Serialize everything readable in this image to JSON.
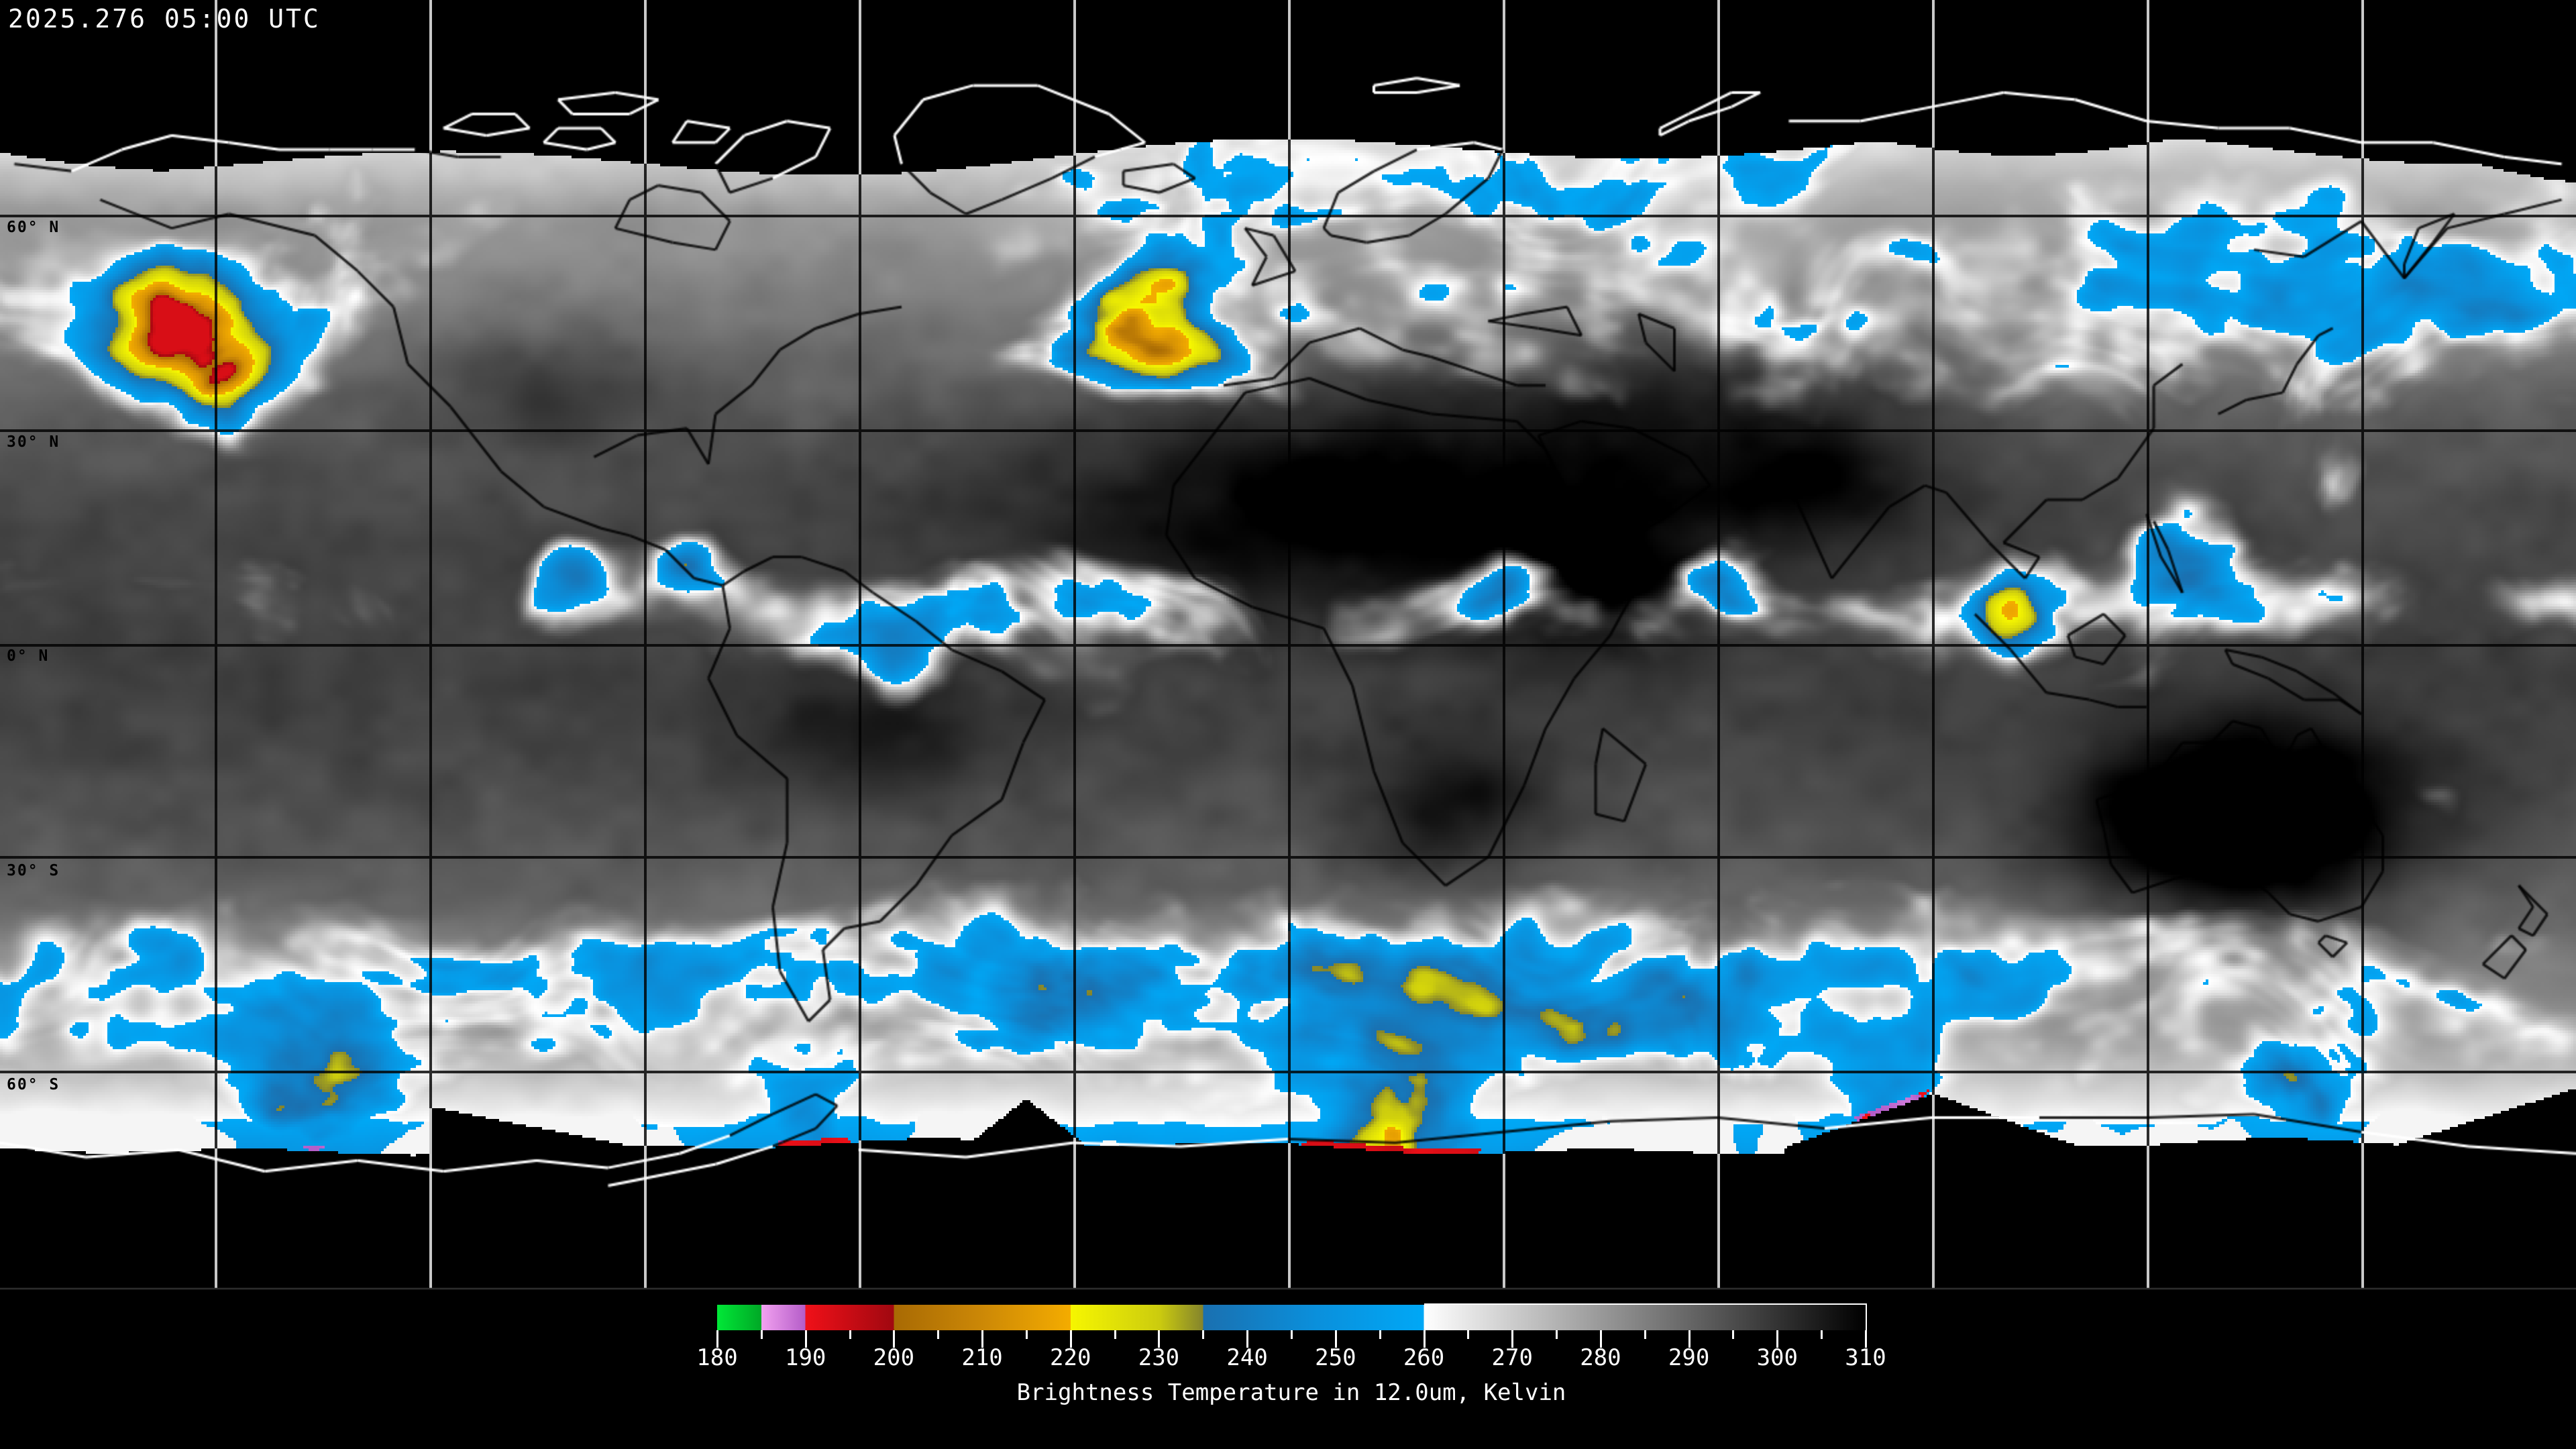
{
  "header": {
    "timestamp": "2025.276 05:00 UTC"
  },
  "map": {
    "projection": "equirectangular-global-composite",
    "grid": {
      "lon_step_deg": 30,
      "lat_step_deg": 30,
      "lat_lines_deg": [
        60,
        30,
        0,
        -30,
        -60
      ]
    },
    "latitude_labels": [
      {
        "lat": 60,
        "label": "60° N"
      },
      {
        "lat": 30,
        "label": "30° N"
      },
      {
        "lat": 0,
        "label": "0° N"
      },
      {
        "lat": -30,
        "label": "30° S"
      },
      {
        "lat": -60,
        "label": "60° S"
      }
    ],
    "colors": {
      "space": "#000000",
      "coastline_on_space": "#ffffff",
      "coastline_on_data": "#000000",
      "gridline_on_space": "#c8c8c8",
      "gridline_on_data": "#141414",
      "cloud_blue": "#1896dd",
      "cloud_yellow": "#e8e800",
      "cloud_orange": "#f0a000",
      "cloud_red": "#e01010"
    }
  },
  "colorbar": {
    "title": "Brightness Temperature in 12.0um, Kelvin",
    "unit": "Kelvin",
    "min_k": 180,
    "max_k": 310,
    "major_tick_step_k": 10,
    "minor_tick_step_k": 5,
    "tick_labels": [
      "180",
      "190",
      "200",
      "210",
      "220",
      "230",
      "240",
      "250",
      "260",
      "270",
      "280",
      "290",
      "300",
      "310"
    ],
    "stops": [
      {
        "k": 180,
        "color": "#00e837"
      },
      {
        "k": 185,
        "color": "#00a826"
      },
      {
        "k": 185,
        "color": "#f2a2f0"
      },
      {
        "k": 190,
        "color": "#b45cc8"
      },
      {
        "k": 190,
        "color": "#f01018"
      },
      {
        "k": 200,
        "color": "#a00810"
      },
      {
        "k": 200,
        "color": "#a86a04"
      },
      {
        "k": 210,
        "color": "#cc8806"
      },
      {
        "k": 220,
        "color": "#f4ac00"
      },
      {
        "k": 220,
        "color": "#f6f600"
      },
      {
        "k": 230,
        "color": "#cccc0e"
      },
      {
        "k": 235,
        "color": "#84842c"
      },
      {
        "k": 235,
        "color": "#1a70b0"
      },
      {
        "k": 248,
        "color": "#0a90dc"
      },
      {
        "k": 260,
        "color": "#00a8f6"
      },
      {
        "k": 260,
        "color": "#ffffff"
      },
      {
        "k": 310,
        "color": "#000000"
      }
    ]
  }
}
